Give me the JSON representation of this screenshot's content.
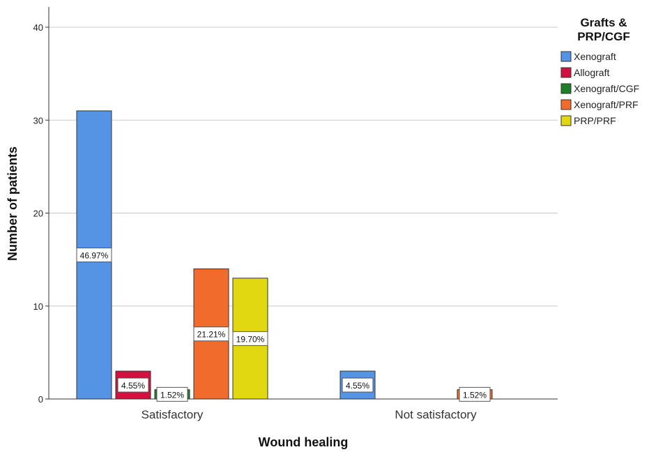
{
  "chart_data": {
    "type": "bar",
    "categories": [
      "Satisfactory",
      "Not satisfactory"
    ],
    "series": [
      {
        "name": "Xenograft",
        "color": "#5593e4",
        "values": [
          31,
          3
        ],
        "labels": [
          "46.97%",
          "4.55%"
        ]
      },
      {
        "name": "Allograft",
        "color": "#d3103f",
        "values": [
          3,
          0
        ],
        "labels": [
          "4.55%",
          ""
        ]
      },
      {
        "name": "Xenograft/CGF",
        "color": "#1f7f28",
        "values": [
          1,
          0
        ],
        "labels": [
          "1.52%",
          ""
        ]
      },
      {
        "name": "Xenograft/PRF",
        "color": "#f06b2c",
        "values": [
          14,
          1
        ],
        "labels": [
          "21.21%",
          "1.52%"
        ]
      },
      {
        "name": "PRP/PRF",
        "color": "#e2d812",
        "values": [
          13,
          0
        ],
        "labels": [
          "19.70%",
          ""
        ]
      }
    ],
    "xlabel": "Wound healing",
    "ylabel": "Number of patients",
    "ylim": [
      0,
      40
    ],
    "yticks": [
      0,
      10,
      20,
      30,
      40
    ],
    "grid": true,
    "legend_title_lines": [
      "Grafts &",
      "PRP/CGF"
    ],
    "legend_position": "top-right"
  }
}
